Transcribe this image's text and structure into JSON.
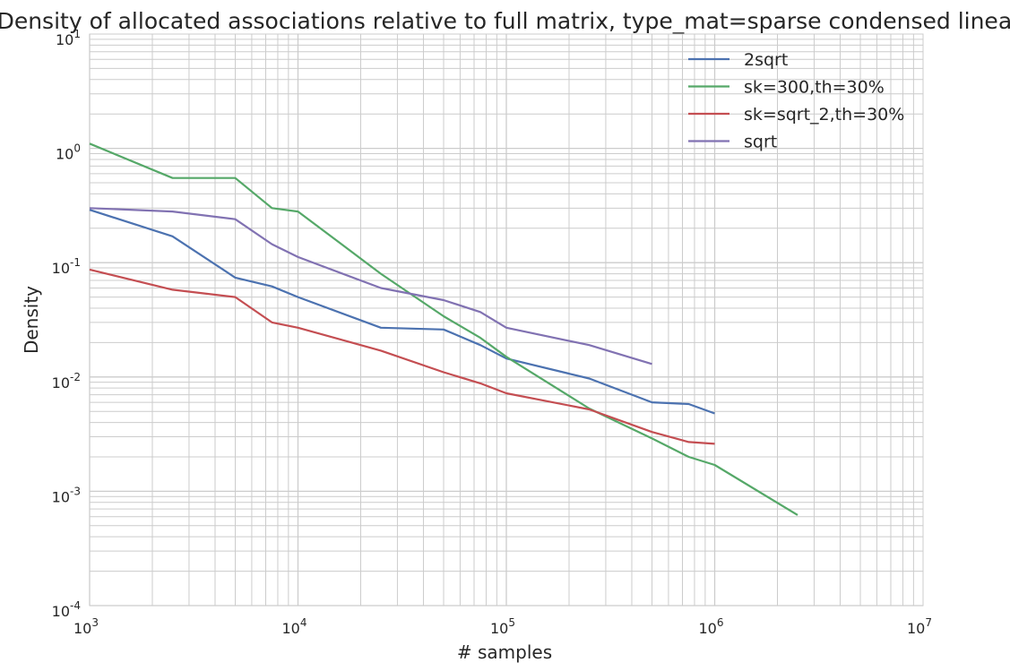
{
  "chart_data": {
    "type": "line",
    "title": "Density of allocated associations relative to full matrix, type_mat=sparse condensed linear",
    "xlabel": "# samples",
    "ylabel": "Density",
    "xscale": "log",
    "yscale": "log",
    "xlim": [
      1000,
      10000000
    ],
    "ylim": [
      0.0001,
      10
    ],
    "grid": true,
    "legend_position": "top-right",
    "x_ticks": [
      {
        "base": "10",
        "exp": "3"
      },
      {
        "base": "10",
        "exp": "4"
      },
      {
        "base": "10",
        "exp": "5"
      },
      {
        "base": "10",
        "exp": "6"
      },
      {
        "base": "10",
        "exp": "7"
      }
    ],
    "y_ticks": [
      {
        "base": "10",
        "exp": "-4"
      },
      {
        "base": "10",
        "exp": "-3"
      },
      {
        "base": "10",
        "exp": "-2"
      },
      {
        "base": "10",
        "exp": "-1"
      },
      {
        "base": "10",
        "exp": "0"
      },
      {
        "base": "10",
        "exp": "1"
      }
    ],
    "series": [
      {
        "name": "2sqrt",
        "color": "#4c72b0",
        "x": [
          1000,
          2500,
          5000,
          7500,
          10000,
          25000,
          50000,
          75000,
          100000,
          250000,
          500000,
          750000,
          1000000
        ],
        "y": [
          0.29,
          0.17,
          0.074,
          0.062,
          0.05,
          0.027,
          0.026,
          0.019,
          0.0145,
          0.0097,
          0.006,
          0.0058,
          0.0048
        ]
      },
      {
        "name": "sk=300,th=30%",
        "color": "#55a868",
        "x": [
          1000,
          2500,
          5000,
          7500,
          10000,
          25000,
          50000,
          75000,
          100000,
          250000,
          500000,
          750000,
          1000000,
          2500000
        ],
        "y": [
          1.1,
          0.55,
          0.55,
          0.3,
          0.28,
          0.08,
          0.034,
          0.022,
          0.015,
          0.0053,
          0.0029,
          0.002,
          0.0017,
          0.00062
        ]
      },
      {
        "name": "sk=sqrt_2,th=30%",
        "color": "#c44e52",
        "x": [
          1000,
          2500,
          5000,
          7500,
          10000,
          25000,
          50000,
          75000,
          100000,
          250000,
          500000,
          750000,
          1000000
        ],
        "y": [
          0.087,
          0.058,
          0.05,
          0.03,
          0.027,
          0.017,
          0.011,
          0.0088,
          0.0072,
          0.0052,
          0.0033,
          0.0027,
          0.0026
        ]
      },
      {
        "name": "sqrt",
        "color": "#8172b2",
        "x": [
          1000,
          2500,
          5000,
          7500,
          10000,
          25000,
          50000,
          75000,
          100000,
          250000,
          500000
        ],
        "y": [
          0.3,
          0.28,
          0.24,
          0.145,
          0.112,
          0.06,
          0.047,
          0.037,
          0.027,
          0.019,
          0.013
        ]
      }
    ]
  }
}
